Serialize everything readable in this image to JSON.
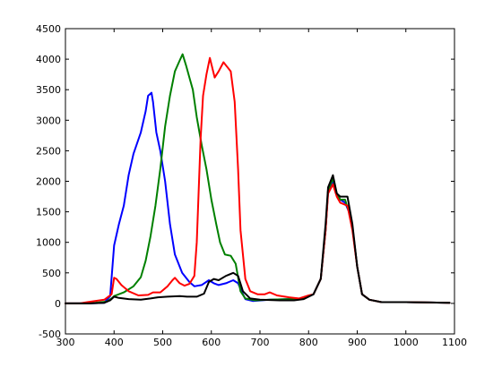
{
  "chart_data": {
    "type": "line",
    "title": "",
    "xlabel": "",
    "ylabel": "",
    "xlim": [
      300,
      1100
    ],
    "ylim": [
      -500,
      4500
    ],
    "xticks": [
      300,
      400,
      500,
      600,
      700,
      800,
      900,
      1000,
      1100
    ],
    "yticks": [
      -500,
      0,
      500,
      1000,
      1500,
      2000,
      2500,
      3000,
      3500,
      4000,
      4500
    ],
    "grid": false,
    "legend": "none",
    "series": [
      {
        "color": "#0000ff",
        "points": [
          [
            300,
            0
          ],
          [
            350,
            0
          ],
          [
            380,
            10
          ],
          [
            392,
            120
          ],
          [
            400,
            950
          ],
          [
            410,
            1300
          ],
          [
            420,
            1600
          ],
          [
            430,
            2100
          ],
          [
            440,
            2450
          ],
          [
            455,
            2800
          ],
          [
            465,
            3150
          ],
          [
            470,
            3400
          ],
          [
            477,
            3450
          ],
          [
            480,
            3300
          ],
          [
            487,
            2800
          ],
          [
            495,
            2500
          ],
          [
            505,
            2000
          ],
          [
            515,
            1300
          ],
          [
            525,
            800
          ],
          [
            540,
            500
          ],
          [
            555,
            350
          ],
          [
            565,
            280
          ],
          [
            580,
            300
          ],
          [
            595,
            380
          ],
          [
            605,
            330
          ],
          [
            615,
            300
          ],
          [
            630,
            330
          ],
          [
            645,
            380
          ],
          [
            655,
            330
          ],
          [
            662,
            200
          ],
          [
            670,
            70
          ],
          [
            685,
            40
          ],
          [
            720,
            60
          ],
          [
            760,
            70
          ],
          [
            790,
            80
          ],
          [
            810,
            150
          ],
          [
            825,
            400
          ],
          [
            835,
            1200
          ],
          [
            840,
            1850
          ],
          [
            850,
            2000
          ],
          [
            858,
            1800
          ],
          [
            865,
            1700
          ],
          [
            875,
            1650
          ],
          [
            883,
            1500
          ],
          [
            890,
            1250
          ],
          [
            900,
            600
          ],
          [
            910,
            150
          ],
          [
            925,
            60
          ],
          [
            950,
            20
          ],
          [
            1000,
            20
          ],
          [
            1050,
            15
          ],
          [
            1090,
            10
          ]
        ]
      },
      {
        "color": "#008000",
        "points": [
          [
            300,
            0
          ],
          [
            350,
            0
          ],
          [
            385,
            30
          ],
          [
            395,
            80
          ],
          [
            400,
            120
          ],
          [
            420,
            180
          ],
          [
            440,
            280
          ],
          [
            455,
            430
          ],
          [
            465,
            700
          ],
          [
            475,
            1100
          ],
          [
            485,
            1600
          ],
          [
            495,
            2200
          ],
          [
            505,
            2900
          ],
          [
            515,
            3400
          ],
          [
            525,
            3800
          ],
          [
            535,
            3980
          ],
          [
            541,
            4080
          ],
          [
            548,
            3900
          ],
          [
            555,
            3700
          ],
          [
            562,
            3500
          ],
          [
            570,
            3050
          ],
          [
            580,
            2600
          ],
          [
            590,
            2200
          ],
          [
            600,
            1700
          ],
          [
            610,
            1300
          ],
          [
            618,
            1000
          ],
          [
            628,
            800
          ],
          [
            640,
            780
          ],
          [
            650,
            650
          ],
          [
            660,
            200
          ],
          [
            670,
            80
          ],
          [
            690,
            50
          ],
          [
            720,
            60
          ],
          [
            760,
            70
          ],
          [
            790,
            80
          ],
          [
            810,
            150
          ],
          [
            825,
            400
          ],
          [
            835,
            1200
          ],
          [
            840,
            1850
          ],
          [
            850,
            2050
          ],
          [
            858,
            1800
          ],
          [
            865,
            1700
          ],
          [
            875,
            1700
          ],
          [
            883,
            1500
          ],
          [
            890,
            1250
          ],
          [
            900,
            600
          ],
          [
            910,
            150
          ],
          [
            925,
            60
          ],
          [
            950,
            20
          ],
          [
            1000,
            20
          ],
          [
            1050,
            15
          ],
          [
            1090,
            10
          ]
        ]
      },
      {
        "color": "#ff0000",
        "points": [
          [
            300,
            0
          ],
          [
            330,
            0
          ],
          [
            345,
            20
          ],
          [
            380,
            60
          ],
          [
            395,
            150
          ],
          [
            400,
            420
          ],
          [
            405,
            400
          ],
          [
            415,
            300
          ],
          [
            430,
            200
          ],
          [
            450,
            130
          ],
          [
            470,
            140
          ],
          [
            480,
            180
          ],
          [
            495,
            180
          ],
          [
            510,
            280
          ],
          [
            520,
            380
          ],
          [
            525,
            420
          ],
          [
            535,
            330
          ],
          [
            545,
            290
          ],
          [
            555,
            320
          ],
          [
            565,
            450
          ],
          [
            570,
            1000
          ],
          [
            578,
            2700
          ],
          [
            583,
            3400
          ],
          [
            590,
            3750
          ],
          [
            597,
            4020
          ],
          [
            607,
            3700
          ],
          [
            615,
            3800
          ],
          [
            625,
            3950
          ],
          [
            640,
            3800
          ],
          [
            648,
            3300
          ],
          [
            655,
            2200
          ],
          [
            660,
            1200
          ],
          [
            670,
            400
          ],
          [
            680,
            200
          ],
          [
            695,
            150
          ],
          [
            710,
            150
          ],
          [
            720,
            180
          ],
          [
            735,
            130
          ],
          [
            760,
            100
          ],
          [
            780,
            80
          ],
          [
            800,
            130
          ],
          [
            810,
            150
          ],
          [
            825,
            400
          ],
          [
            835,
            1200
          ],
          [
            840,
            1800
          ],
          [
            850,
            1950
          ],
          [
            858,
            1750
          ],
          [
            865,
            1650
          ],
          [
            880,
            1600
          ],
          [
            890,
            1200
          ],
          [
            900,
            600
          ],
          [
            910,
            150
          ],
          [
            925,
            60
          ],
          [
            950,
            20
          ],
          [
            1000,
            20
          ],
          [
            1050,
            15
          ],
          [
            1090,
            10
          ]
        ]
      },
      {
        "color": "#000000",
        "points": [
          [
            300,
            0
          ],
          [
            350,
            0
          ],
          [
            380,
            10
          ],
          [
            392,
            50
          ],
          [
            400,
            110
          ],
          [
            410,
            90
          ],
          [
            430,
            70
          ],
          [
            455,
            60
          ],
          [
            475,
            80
          ],
          [
            490,
            100
          ],
          [
            510,
            110
          ],
          [
            535,
            120
          ],
          [
            550,
            110
          ],
          [
            570,
            110
          ],
          [
            585,
            160
          ],
          [
            595,
            350
          ],
          [
            605,
            400
          ],
          [
            615,
            380
          ],
          [
            630,
            450
          ],
          [
            645,
            500
          ],
          [
            655,
            450
          ],
          [
            665,
            200
          ],
          [
            680,
            80
          ],
          [
            700,
            60
          ],
          [
            740,
            50
          ],
          [
            770,
            50
          ],
          [
            790,
            70
          ],
          [
            810,
            150
          ],
          [
            825,
            400
          ],
          [
            835,
            1300
          ],
          [
            840,
            1900
          ],
          [
            850,
            2100
          ],
          [
            858,
            1800
          ],
          [
            865,
            1750
          ],
          [
            880,
            1750
          ],
          [
            890,
            1300
          ],
          [
            900,
            600
          ],
          [
            910,
            150
          ],
          [
            925,
            60
          ],
          [
            950,
            20
          ],
          [
            1000,
            20
          ],
          [
            1050,
            15
          ],
          [
            1090,
            10
          ]
        ]
      }
    ]
  }
}
